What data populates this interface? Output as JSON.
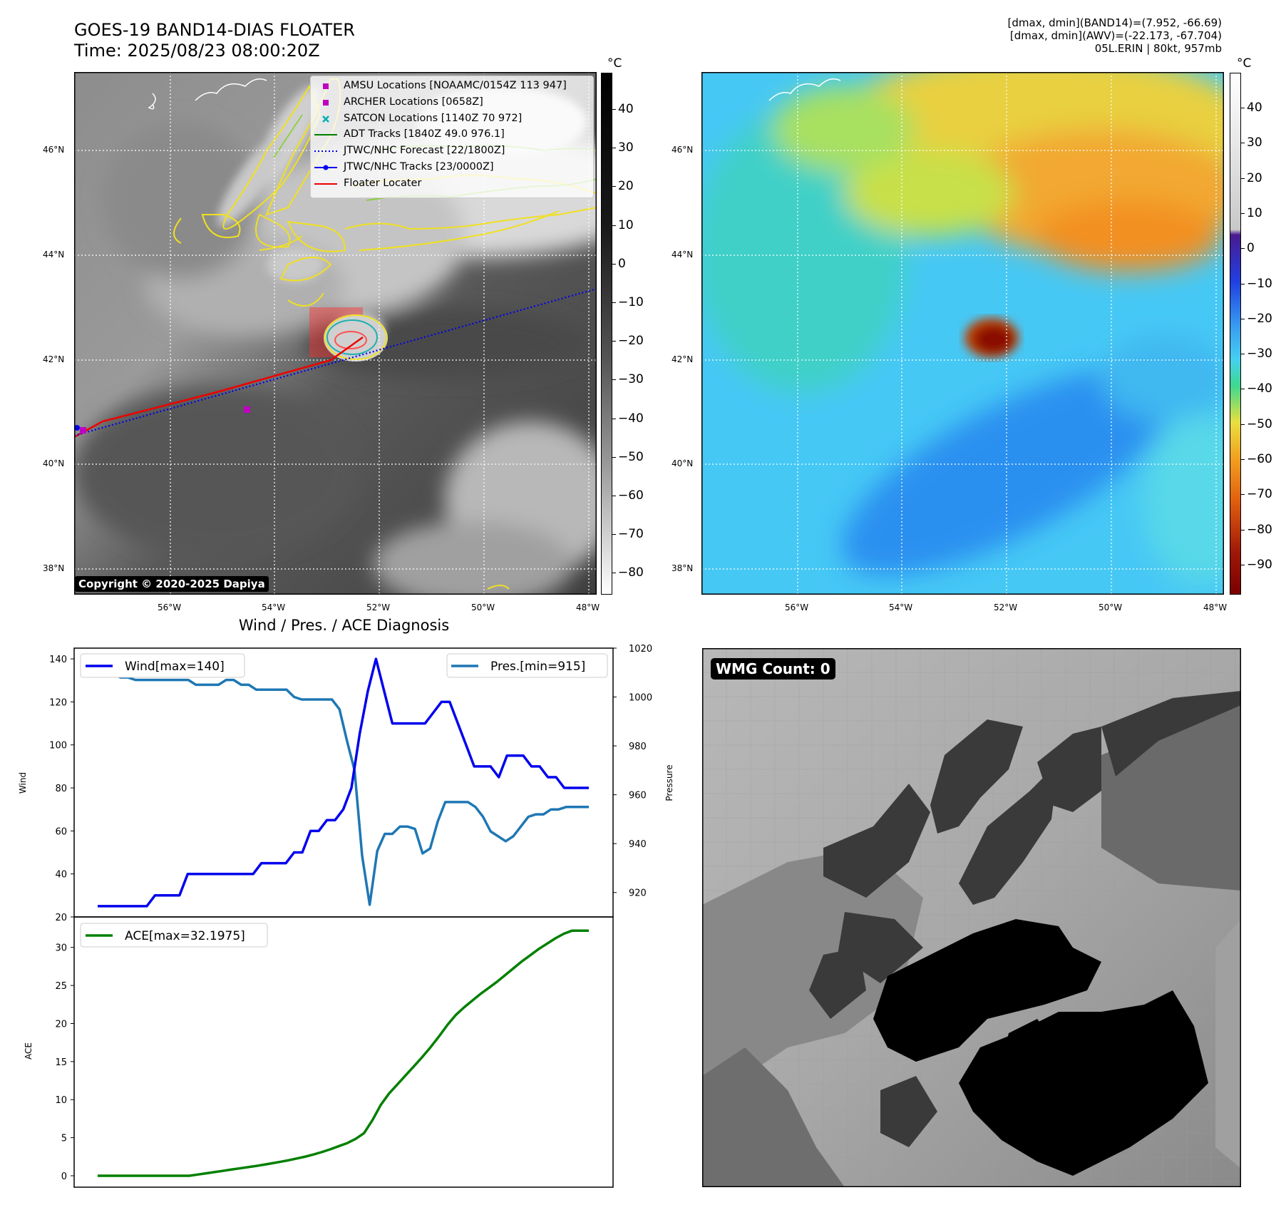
{
  "header": {
    "title_line1": "GOES-19 BAND14-DIAS FLOATER",
    "title_line2": "Time: 2025/08/23 08:00:20Z",
    "info_line1": "[dmax, dmin](BAND14)=(7.952, -66.69)",
    "info_line2": "[dmax, dmin](AWV)=(-22.173, -67.704)",
    "info_line3": "05L.ERIN | 80kt, 957mb"
  },
  "map": {
    "lat_labels": [
      "46°N",
      "44°N",
      "42°N",
      "40°N",
      "38°N"
    ],
    "lon_labels": [
      "56°W",
      "54°W",
      "52°W",
      "50°W",
      "48°W"
    ],
    "copyright": "Copyright © 2020-2025 Dapiya",
    "legend": [
      {
        "label": "AMSU Locations [NOAAMC/0154Z 113 947]",
        "color": "#c000c0",
        "marker": "square"
      },
      {
        "label": "ARCHER Locations [0658Z]",
        "color": "#c000c0",
        "marker": "square"
      },
      {
        "label": "SATCON Locations [1140Z 70 972]",
        "color": "#00b0b0",
        "marker": "x"
      },
      {
        "label": "ADT Tracks [1840Z 49.0 976.1]",
        "color": "#008000",
        "marker": "line"
      },
      {
        "label": "JTWC/NHC Forecast [22/1800Z]",
        "color": "#0000ee",
        "marker": "dotted"
      },
      {
        "label": "JTWC/NHC Tracks [23/0000Z]",
        "color": "#0000ee",
        "marker": "line-dot"
      },
      {
        "label": "Floater Locater",
        "color": "#ee0000",
        "marker": "line"
      }
    ]
  },
  "colorbars": {
    "unit": "°C",
    "gray_ticks": [
      "40",
      "30",
      "20",
      "10",
      "0",
      "−10",
      "−20",
      "−30",
      "−40",
      "−50",
      "−60",
      "−70",
      "−80"
    ],
    "color_ticks": [
      "40",
      "30",
      "20",
      "10",
      "0",
      "−10",
      "−20",
      "−30",
      "−40",
      "−50",
      "−60",
      "−70",
      "−80",
      "−90"
    ]
  },
  "diagnosis": {
    "title": "Wind / Pres. / ACE Diagnosis",
    "wind_axis_label": "Wind",
    "pressure_axis_label": "Pressure",
    "ace_axis_label": "ACE",
    "wind_legend": "Wind[max=140]",
    "pres_legend": "Pres.[min=915]",
    "ace_legend": "ACE[max=32.1975]",
    "wmg_label": "WMG Count: 0"
  },
  "chart_data": [
    {
      "type": "line",
      "title": "Wind / Pres. / ACE Diagnosis",
      "ylabel": "Wind",
      "ylim": [
        20,
        145
      ],
      "yticks": [
        20,
        40,
        60,
        80,
        100,
        120,
        140
      ],
      "series": [
        {
          "name": "Wind[max=140]",
          "color": "#0000ee",
          "values": [
            25,
            25,
            25,
            25,
            25,
            25,
            25,
            30,
            30,
            30,
            30,
            40,
            40,
            40,
            40,
            40,
            40,
            40,
            40,
            40,
            45,
            45,
            45,
            45,
            50,
            50,
            60,
            60,
            65,
            65,
            70,
            80,
            105,
            125,
            140,
            125,
            110,
            110,
            110,
            110,
            110,
            115,
            120,
            120,
            110,
            100,
            90,
            90,
            90,
            85,
            95,
            95,
            95,
            90,
            90,
            85,
            85,
            80,
            80,
            80,
            80
          ]
        }
      ]
    },
    {
      "type": "line",
      "ylabel": "Pressure",
      "ylim": [
        910,
        1020
      ],
      "yticks": [
        920,
        940,
        960,
        980,
        1000,
        1020
      ],
      "series": [
        {
          "name": "Pres.[min=915]",
          "color": "#1f77b4",
          "values": [
            1015,
            1015,
            1010,
            1008,
            1008,
            1007,
            1007,
            1007,
            1007,
            1007,
            1007,
            1007,
            1007,
            1005,
            1005,
            1005,
            1005,
            1007,
            1007,
            1005,
            1005,
            1003,
            1003,
            1003,
            1003,
            1003,
            1000,
            999,
            999,
            999,
            999,
            999,
            995,
            982,
            970,
            935,
            915,
            937,
            944,
            944,
            947,
            947,
            946,
            936,
            938,
            949,
            957,
            957,
            957,
            957,
            955,
            951,
            945,
            943,
            941,
            943,
            947,
            951,
            952,
            952,
            954,
            954,
            955,
            955,
            955,
            955
          ]
        }
      ]
    },
    {
      "type": "line",
      "ylabel": "ACE",
      "ylim": [
        -1.5,
        34
      ],
      "yticks": [
        0,
        5,
        10,
        15,
        20,
        25,
        30
      ],
      "series": [
        {
          "name": "ACE[max=32.1975]",
          "color": "#008000",
          "values": [
            0,
            0,
            0,
            0,
            0,
            0,
            0,
            0,
            0,
            0,
            0,
            0,
            0.16,
            0.32,
            0.48,
            0.64,
            0.8,
            0.96,
            1.12,
            1.28,
            1.46,
            1.65,
            1.84,
            2.05,
            2.28,
            2.53,
            2.82,
            3.14,
            3.5,
            3.9,
            4.3,
            4.85,
            5.6,
            7.3,
            9.3,
            10.8,
            12.0,
            13.2,
            14.4,
            15.6,
            16.9,
            18.3,
            19.8,
            21.1,
            22.1,
            23.0,
            23.9,
            24.7,
            25.5,
            26.4,
            27.3,
            28.2,
            29.0,
            29.8,
            30.5,
            31.2,
            31.8,
            32.2,
            32.2,
            32.2
          ]
        }
      ]
    }
  ]
}
